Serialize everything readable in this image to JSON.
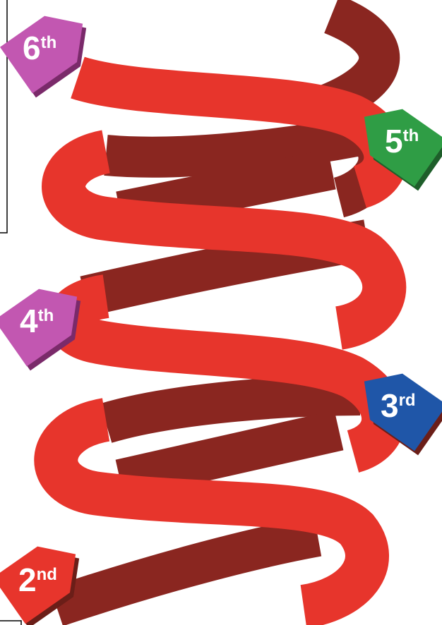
{
  "labels": [
    {
      "number": "6",
      "suffix": "th"
    },
    {
      "number": "5",
      "suffix": "th"
    },
    {
      "number": "4",
      "suffix": "th"
    },
    {
      "number": "3",
      "suffix": "rd"
    },
    {
      "number": "2",
      "suffix": "nd"
    }
  ]
}
